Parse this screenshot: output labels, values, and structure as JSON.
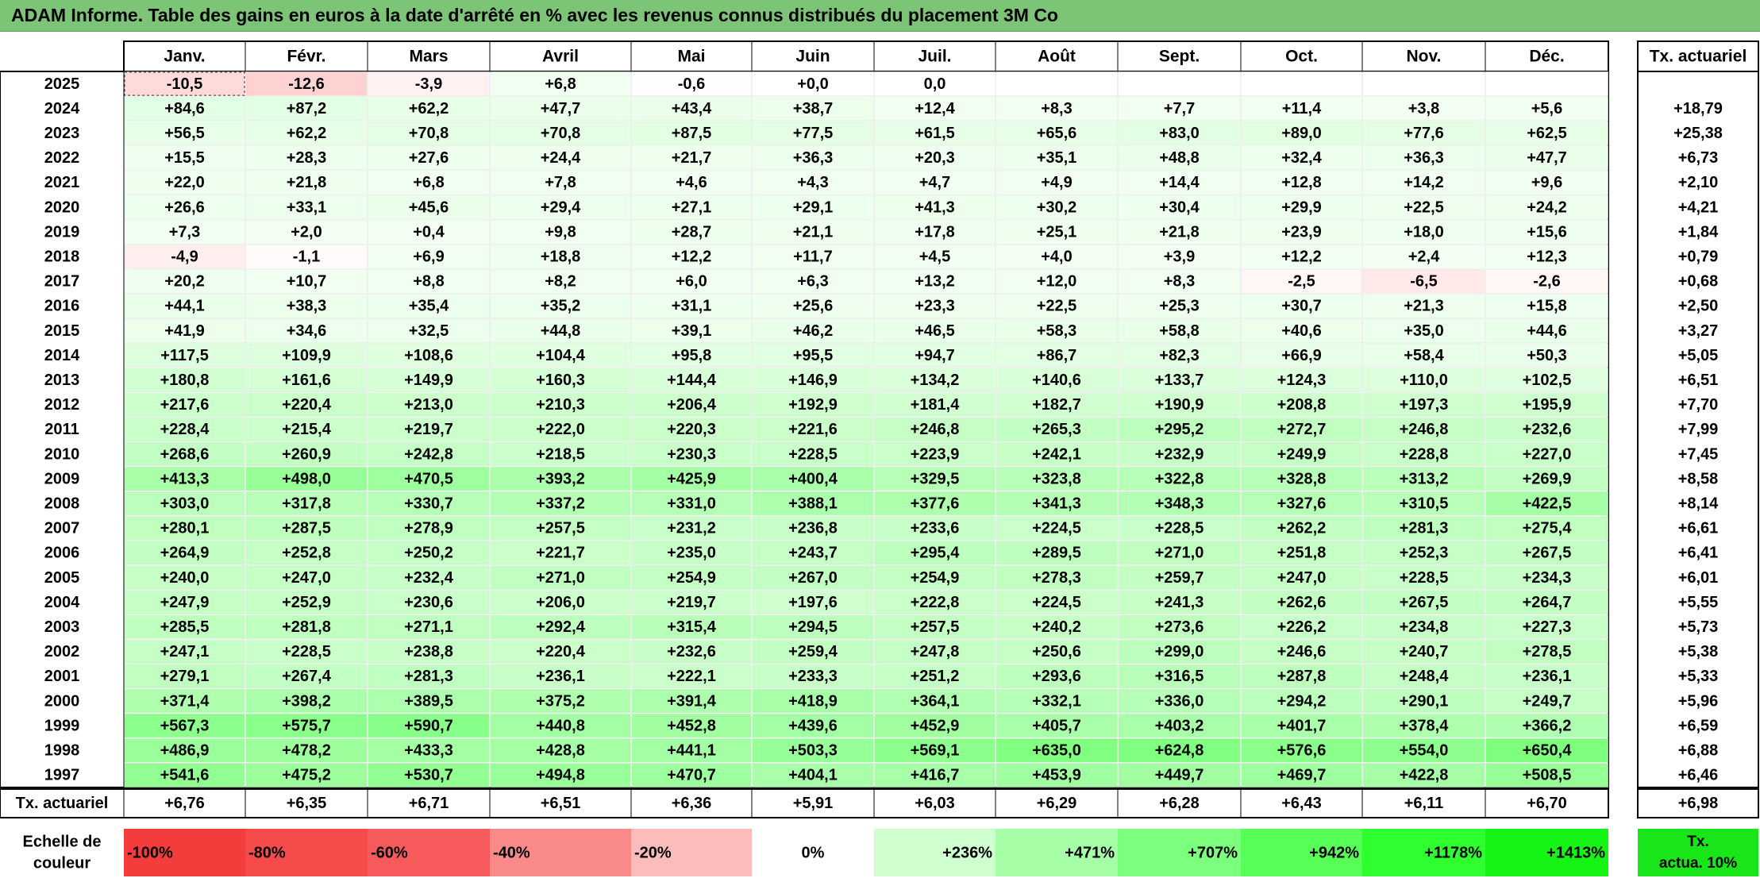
{
  "title": "ADAM Informe. Table des gains en euros à la date d'arrêté en % avec les revenus connus distribués du placement 3M Co",
  "months": [
    "Janv.",
    "Févr.",
    "Mars",
    "Avril",
    "Mai",
    "Juin",
    "Juil.",
    "Août",
    "Sept.",
    "Oct.",
    "Nov.",
    "Déc."
  ],
  "rate_header": "Tx. actuariel",
  "years": [
    "2025",
    "2024",
    "2023",
    "2022",
    "2021",
    "2020",
    "2019",
    "2018",
    "2017",
    "2016",
    "2015",
    "2014",
    "2013",
    "2012",
    "2011",
    "2010",
    "2009",
    "2008",
    "2007",
    "2006",
    "2005",
    "2004",
    "2003",
    "2002",
    "2001",
    "2000",
    "1999",
    "1998",
    "1997"
  ],
  "values": [
    [
      "-10,5",
      "-12,6",
      "-3,9",
      "+6,8",
      "-0,6",
      "+0,0",
      "0,0",
      "",
      "",
      "",
      "",
      ""
    ],
    [
      "+84,6",
      "+87,2",
      "+62,2",
      "+47,7",
      "+43,4",
      "+38,7",
      "+12,4",
      "+8,3",
      "+7,7",
      "+11,4",
      "+3,8",
      "+5,6"
    ],
    [
      "+56,5",
      "+62,2",
      "+70,8",
      "+70,8",
      "+87,5",
      "+77,5",
      "+61,5",
      "+65,6",
      "+83,0",
      "+89,0",
      "+77,6",
      "+62,5"
    ],
    [
      "+15,5",
      "+28,3",
      "+27,6",
      "+24,4",
      "+21,7",
      "+36,3",
      "+20,3",
      "+35,1",
      "+48,8",
      "+32,4",
      "+36,3",
      "+47,7"
    ],
    [
      "+22,0",
      "+21,8",
      "+6,8",
      "+7,8",
      "+4,6",
      "+4,3",
      "+4,7",
      "+4,9",
      "+14,4",
      "+12,8",
      "+14,2",
      "+9,6"
    ],
    [
      "+26,6",
      "+33,1",
      "+45,6",
      "+29,4",
      "+27,1",
      "+29,1",
      "+41,3",
      "+30,2",
      "+30,4",
      "+29,9",
      "+22,5",
      "+24,2"
    ],
    [
      "+7,3",
      "+2,0",
      "+0,4",
      "+9,8",
      "+28,7",
      "+21,1",
      "+17,8",
      "+25,1",
      "+21,8",
      "+23,9",
      "+18,0",
      "+15,6"
    ],
    [
      "-4,9",
      "-1,1",
      "+6,9",
      "+18,8",
      "+12,2",
      "+11,7",
      "+4,5",
      "+4,0",
      "+3,9",
      "+12,2",
      "+2,4",
      "+12,3"
    ],
    [
      "+20,2",
      "+10,7",
      "+8,8",
      "+8,2",
      "+6,0",
      "+6,3",
      "+13,2",
      "+12,0",
      "+8,3",
      "-2,5",
      "-6,5",
      "-2,6"
    ],
    [
      "+44,1",
      "+38,3",
      "+35,4",
      "+35,2",
      "+31,1",
      "+25,6",
      "+23,3",
      "+22,5",
      "+25,3",
      "+30,7",
      "+21,3",
      "+15,8"
    ],
    [
      "+41,9",
      "+34,6",
      "+32,5",
      "+44,8",
      "+39,1",
      "+46,2",
      "+46,5",
      "+58,3",
      "+58,8",
      "+40,6",
      "+35,0",
      "+44,6"
    ],
    [
      "+117,5",
      "+109,9",
      "+108,6",
      "+104,4",
      "+95,8",
      "+95,5",
      "+94,7",
      "+86,7",
      "+82,3",
      "+66,9",
      "+58,4",
      "+50,3"
    ],
    [
      "+180,8",
      "+161,6",
      "+149,9",
      "+160,3",
      "+144,4",
      "+146,9",
      "+134,2",
      "+140,6",
      "+133,7",
      "+124,3",
      "+110,0",
      "+102,5"
    ],
    [
      "+217,6",
      "+220,4",
      "+213,0",
      "+210,3",
      "+206,4",
      "+192,9",
      "+181,4",
      "+182,7",
      "+190,9",
      "+208,8",
      "+197,3",
      "+195,9"
    ],
    [
      "+228,4",
      "+215,4",
      "+219,7",
      "+222,0",
      "+220,3",
      "+221,6",
      "+246,8",
      "+265,3",
      "+295,2",
      "+272,7",
      "+246,8",
      "+232,6"
    ],
    [
      "+268,6",
      "+260,9",
      "+242,8",
      "+218,5",
      "+230,3",
      "+228,5",
      "+223,9",
      "+242,1",
      "+232,9",
      "+249,9",
      "+228,8",
      "+227,0"
    ],
    [
      "+413,3",
      "+498,0",
      "+470,5",
      "+393,2",
      "+425,9",
      "+400,4",
      "+329,5",
      "+323,8",
      "+322,8",
      "+328,8",
      "+313,2",
      "+269,9"
    ],
    [
      "+303,0",
      "+317,8",
      "+330,7",
      "+337,2",
      "+331,0",
      "+388,1",
      "+377,6",
      "+341,3",
      "+348,3",
      "+327,6",
      "+310,5",
      "+422,5"
    ],
    [
      "+280,1",
      "+287,5",
      "+278,9",
      "+257,5",
      "+231,2",
      "+236,8",
      "+233,6",
      "+224,5",
      "+228,5",
      "+262,2",
      "+281,3",
      "+275,4"
    ],
    [
      "+264,9",
      "+252,8",
      "+250,2",
      "+221,7",
      "+235,0",
      "+243,7",
      "+295,4",
      "+289,5",
      "+271,0",
      "+251,8",
      "+252,3",
      "+267,5"
    ],
    [
      "+240,0",
      "+247,0",
      "+232,4",
      "+271,0",
      "+254,9",
      "+267,0",
      "+254,9",
      "+278,3",
      "+259,7",
      "+247,0",
      "+228,5",
      "+234,3"
    ],
    [
      "+247,9",
      "+252,9",
      "+230,6",
      "+206,0",
      "+219,7",
      "+197,6",
      "+222,8",
      "+224,5",
      "+241,3",
      "+262,6",
      "+267,5",
      "+264,7"
    ],
    [
      "+285,5",
      "+281,8",
      "+271,1",
      "+292,4",
      "+315,4",
      "+294,5",
      "+257,5",
      "+240,2",
      "+273,6",
      "+226,2",
      "+234,8",
      "+227,3"
    ],
    [
      "+247,1",
      "+228,5",
      "+238,8",
      "+220,4",
      "+232,6",
      "+259,4",
      "+247,8",
      "+250,6",
      "+299,0",
      "+246,6",
      "+240,7",
      "+278,5"
    ],
    [
      "+279,1",
      "+267,4",
      "+281,3",
      "+236,1",
      "+222,1",
      "+233,3",
      "+251,2",
      "+293,6",
      "+316,5",
      "+287,8",
      "+248,4",
      "+236,1"
    ],
    [
      "+371,4",
      "+398,2",
      "+389,5",
      "+375,2",
      "+391,4",
      "+418,9",
      "+364,1",
      "+332,1",
      "+336,0",
      "+294,2",
      "+290,1",
      "+249,7"
    ],
    [
      "+567,3",
      "+575,7",
      "+590,7",
      "+440,8",
      "+452,8",
      "+439,6",
      "+452,9",
      "+405,7",
      "+403,2",
      "+401,7",
      "+378,4",
      "+366,2"
    ],
    [
      "+486,9",
      "+478,2",
      "+433,3",
      "+428,8",
      "+441,1",
      "+503,3",
      "+569,1",
      "+635,0",
      "+624,8",
      "+576,6",
      "+554,0",
      "+650,4"
    ],
    [
      "+541,6",
      "+475,2",
      "+530,7",
      "+494,8",
      "+470,7",
      "+404,1",
      "+416,7",
      "+453,9",
      "+449,7",
      "+469,7",
      "+422,8",
      "+508,5"
    ]
  ],
  "year_rates": [
    "",
    "+18,79",
    "+25,38",
    "+6,73",
    "+2,10",
    "+4,21",
    "+1,84",
    "+0,79",
    "+0,68",
    "+2,50",
    "+3,27",
    "+5,05",
    "+6,51",
    "+7,70",
    "+7,99",
    "+7,45",
    "+8,58",
    "+8,14",
    "+6,61",
    "+6,41",
    "+6,01",
    "+5,55",
    "+5,73",
    "+5,38",
    "+5,33",
    "+5,96",
    "+6,59",
    "+6,88",
    "+6,46"
  ],
  "footer": {
    "label": "Tx. actuariel",
    "month_rates": [
      "+6,76",
      "+6,35",
      "+6,71",
      "+6,51",
      "+6,36",
      "+5,91",
      "+6,03",
      "+6,29",
      "+6,28",
      "+6,43",
      "+6,11",
      "+6,70"
    ],
    "total_rate": "+6,98"
  },
  "scale": {
    "label_line1": "Echelle de",
    "label_line2": "couleur",
    "items": [
      {
        "label": "-100%",
        "color": "#f43c3c",
        "align": "left"
      },
      {
        "label": "-80%",
        "color": "#f54b4b",
        "align": "left"
      },
      {
        "label": "-60%",
        "color": "#f75a5a",
        "align": "left"
      },
      {
        "label": "-40%",
        "color": "#fa8989",
        "align": "left"
      },
      {
        "label": "-20%",
        "color": "#fcbcbc",
        "align": "left"
      },
      {
        "label": "0%",
        "color": "#ffffff",
        "align": "center"
      },
      {
        "label": "+236%",
        "color": "#cfffcf",
        "align": "right"
      },
      {
        "label": "+471%",
        "color": "#a6ffa6",
        "align": "right"
      },
      {
        "label": "+707%",
        "color": "#7cff7c",
        "align": "right"
      },
      {
        "label": "+942%",
        "color": "#55ff55",
        "align": "right"
      },
      {
        "label": "+1178%",
        "color": "#2eff2e",
        "align": "right"
      },
      {
        "label": "+1413%",
        "color": "#16f416",
        "align": "right"
      }
    ],
    "rate_label_line1": "Tx.",
    "rate_label_line2": "actua. 10%",
    "rate_color": "#19e619"
  },
  "colors": {
    "title_bg": "#7cc576",
    "negative": "#ff2020",
    "positive": "#00ff00"
  }
}
